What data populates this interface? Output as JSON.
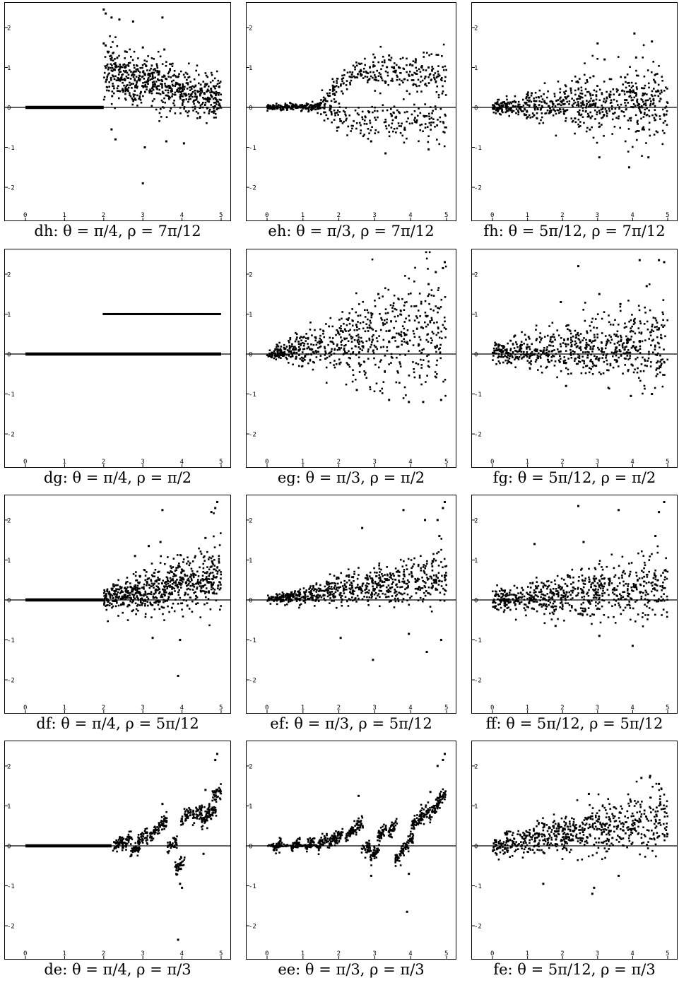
{
  "page": {
    "background": "#ffffff",
    "mark_color": "#000000"
  },
  "chart_data": [
    {
      "id": "dh",
      "caption": "dh:  θ = π/4,  ρ = 7π/12",
      "type": "scatter",
      "xlim": [
        0,
        5
      ],
      "ylim": [
        -2.6,
        2.6
      ],
      "xticks": [
        "0",
        "1",
        "2",
        "3",
        "4",
        "5"
      ],
      "yticks": [
        "-2",
        "-1",
        "0",
        "1",
        "2"
      ],
      "grid": false,
      "pattern": {
        "kind": "zero-then-scatter",
        "x_switch": 2.0,
        "mean": [
          0.9,
          0.2
        ],
        "spread": [
          0.35,
          0.25
        ],
        "outliers": [
          [
            2.0,
            2.45
          ],
          [
            2.05,
            2.35
          ],
          [
            2.2,
            2.25
          ],
          [
            2.4,
            2.2
          ],
          [
            2.75,
            2.15
          ],
          [
            3.5,
            2.25
          ],
          [
            3.0,
            -1.9
          ],
          [
            2.0,
            1.6
          ],
          [
            3.0,
            1.5
          ],
          [
            3.55,
            1.45
          ],
          [
            2.55,
            1.4
          ],
          [
            2.05,
            1.55
          ],
          [
            3.05,
            -1.0
          ],
          [
            2.3,
            -0.8
          ],
          [
            3.6,
            -0.85
          ],
          [
            4.05,
            -0.9
          ],
          [
            2.2,
            -0.55
          ]
        ]
      }
    },
    {
      "id": "eh",
      "caption": "eh:  θ = π/3,  ρ = 7π/12",
      "type": "scatter",
      "xlim": [
        0,
        5
      ],
      "ylim": [
        -2.6,
        2.6
      ],
      "xticks": [
        "0",
        "1",
        "2",
        "3",
        "4",
        "5"
      ],
      "yticks": [
        "-2",
        "-1",
        "0",
        "1",
        "2"
      ],
      "grid": false,
      "pattern": {
        "kind": "two-band",
        "upper": 0.75,
        "lower": -0.35,
        "spread_end": 0.3,
        "outliers": [
          [
            3.3,
            -1.15
          ],
          [
            4.5,
            -1.05
          ],
          [
            2.9,
            -0.85
          ],
          [
            3.4,
            1.3
          ],
          [
            3.0,
            1.25
          ],
          [
            4.05,
            1.05
          ],
          [
            4.5,
            1.0
          ]
        ]
      }
    },
    {
      "id": "fh",
      "caption": "fh:  θ = 5π/12,  ρ = 7π/12",
      "type": "scatter",
      "xlim": [
        0,
        5
      ],
      "ylim": [
        -2.6,
        2.6
      ],
      "xticks": [
        "0",
        "1",
        "2",
        "3",
        "4",
        "5"
      ],
      "yticks": [
        "-2",
        "-1",
        "0",
        "1",
        "2"
      ],
      "grid": false,
      "pattern": {
        "kind": "fan",
        "slope": 0.04,
        "spread_start": 0.06,
        "spread_end": 0.55,
        "outliers": [
          [
            4.05,
            1.85
          ],
          [
            3.0,
            1.6
          ],
          [
            4.55,
            1.65
          ],
          [
            3.9,
            -1.5
          ],
          [
            3.05,
            -1.25
          ],
          [
            4.45,
            -1.25
          ],
          [
            3.2,
            1.2
          ],
          [
            4.1,
            1.25
          ]
        ]
      }
    },
    {
      "id": "dg",
      "caption": "dg:  θ = π/4,  ρ = π/2",
      "type": "scatter",
      "xlim": [
        0,
        5
      ],
      "ylim": [
        -2.6,
        2.6
      ],
      "xticks": [
        "0",
        "1",
        "2",
        "3",
        "4",
        "5"
      ],
      "yticks": [
        "-2",
        "-1",
        "0",
        "1",
        "2"
      ],
      "grid": false,
      "pattern": {
        "kind": "two-lines",
        "x_switch": 2.0,
        "level": 1.0,
        "outliers": []
      }
    },
    {
      "id": "eg",
      "caption": "eg:  θ = π/3,  ρ = π/2",
      "type": "scatter",
      "xlim": [
        0,
        5
      ],
      "ylim": [
        -2.6,
        2.6
      ],
      "xticks": [
        "0",
        "1",
        "2",
        "3",
        "4",
        "5"
      ],
      "yticks": [
        "-2",
        "-1",
        "0",
        "1",
        "2"
      ],
      "grid": false,
      "pattern": {
        "kind": "fan",
        "slope": 0.12,
        "spread_start": 0.04,
        "spread_end": 0.85,
        "outliers": [
          [
            4.95,
            2.3
          ],
          [
            4.9,
            2.15
          ],
          [
            4.7,
            2.05
          ],
          [
            3.1,
            1.5
          ],
          [
            4.5,
            1.75
          ],
          [
            4.35,
            -1.2
          ],
          [
            3.4,
            -1.15
          ],
          [
            3.95,
            -1.2
          ],
          [
            4.85,
            -1.15
          ],
          [
            2.5,
            -0.9
          ]
        ]
      }
    },
    {
      "id": "fg",
      "caption": "fg:  θ = 5π/12,  ρ = π/2",
      "type": "scatter",
      "xlim": [
        0,
        5
      ],
      "ylim": [
        -2.6,
        2.6
      ],
      "xticks": [
        "0",
        "1",
        "2",
        "3",
        "4",
        "5"
      ],
      "yticks": [
        "-2",
        "-1",
        "0",
        "1",
        "2"
      ],
      "grid": false,
      "pattern": {
        "kind": "fan",
        "slope": 0.06,
        "spread_start": 0.12,
        "spread_end": 0.55,
        "outliers": [
          [
            4.2,
            2.35
          ],
          [
            4.75,
            2.35
          ],
          [
            4.9,
            2.3
          ],
          [
            2.45,
            2.2
          ],
          [
            3.05,
            1.5
          ],
          [
            4.4,
            1.7
          ],
          [
            1.95,
            1.3
          ],
          [
            3.65,
            1.25
          ],
          [
            3.95,
            -1.05
          ],
          [
            4.55,
            -1.0
          ],
          [
            2.1,
            -0.8
          ]
        ]
      }
    },
    {
      "id": "df",
      "caption": "df:  θ = π/4,  ρ = 5π/12",
      "type": "scatter",
      "xlim": [
        0,
        5
      ],
      "ylim": [
        -2.6,
        2.6
      ],
      "xticks": [
        "0",
        "1",
        "2",
        "3",
        "4",
        "5"
      ],
      "yticks": [
        "-2",
        "-1",
        "0",
        "1",
        "2"
      ],
      "grid": false,
      "pattern": {
        "kind": "zero-then-fan",
        "x_switch": 2.0,
        "slope": 0.2,
        "spread_start": 0.15,
        "spread_end": 0.45,
        "outliers": [
          [
            4.9,
            2.45
          ],
          [
            4.85,
            2.3
          ],
          [
            4.75,
            2.2
          ],
          [
            3.15,
            1.35
          ],
          [
            3.5,
            2.25
          ],
          [
            3.45,
            1.45
          ],
          [
            4.6,
            1.55
          ],
          [
            3.9,
            -1.9
          ],
          [
            3.95,
            -1.0
          ],
          [
            3.25,
            -0.95
          ],
          [
            2.8,
            1.1
          ]
        ]
      }
    },
    {
      "id": "ef",
      "caption": "ef:  θ = π/3,  ρ = 5π/12",
      "type": "scatter",
      "xlim": [
        0,
        5
      ],
      "ylim": [
        -2.6,
        2.6
      ],
      "xticks": [
        "0",
        "1",
        "2",
        "3",
        "4",
        "5"
      ],
      "yticks": [
        "-2",
        "-1",
        "0",
        "1",
        "2"
      ],
      "grid": false,
      "pattern": {
        "kind": "fan",
        "slope": 0.12,
        "spread_start": 0.04,
        "spread_end": 0.35,
        "outliers": [
          [
            4.95,
            2.45
          ],
          [
            4.9,
            2.3
          ],
          [
            4.75,
            2.0
          ],
          [
            4.8,
            1.6
          ],
          [
            3.8,
            2.25
          ],
          [
            2.65,
            1.8
          ],
          [
            4.4,
            2.0
          ],
          [
            2.95,
            -1.5
          ],
          [
            4.45,
            -1.3
          ],
          [
            4.85,
            -1.0
          ],
          [
            2.05,
            -0.95
          ],
          [
            3.95,
            -0.85
          ]
        ]
      }
    },
    {
      "id": "ff",
      "caption": "ff:  θ = 5π/12,  ρ = 5π/12",
      "type": "scatter",
      "xlim": [
        0,
        5
      ],
      "ylim": [
        -2.6,
        2.6
      ],
      "xticks": [
        "0",
        "1",
        "2",
        "3",
        "4",
        "5"
      ],
      "yticks": [
        "-2",
        "-1",
        "0",
        "1",
        "2"
      ],
      "grid": false,
      "pattern": {
        "kind": "fan",
        "slope": 0.06,
        "spread_start": 0.12,
        "spread_end": 0.45,
        "outliers": [
          [
            4.9,
            2.45
          ],
          [
            4.75,
            2.2
          ],
          [
            2.45,
            2.35
          ],
          [
            3.6,
            2.25
          ],
          [
            1.2,
            1.4
          ],
          [
            2.6,
            1.45
          ],
          [
            4.65,
            1.6
          ],
          [
            4.0,
            -1.15
          ],
          [
            3.05,
            -0.9
          ],
          [
            1.8,
            -0.65
          ]
        ]
      }
    },
    {
      "id": "de",
      "caption": "de:  θ = π/4,  ρ = π/3",
      "type": "scatter",
      "xlim": [
        0,
        5
      ],
      "ylim": [
        -2.6,
        2.6
      ],
      "xticks": [
        "0",
        "1",
        "2",
        "3",
        "4",
        "5"
      ],
      "yticks": [
        "-2",
        "-1",
        "0",
        "1",
        "2"
      ],
      "grid": false,
      "pattern": {
        "kind": "zero-then-clusters",
        "x_switch": 2.2,
        "clusters": [
          [
            2.35,
            0.05
          ],
          [
            2.6,
            0.1
          ],
          [
            2.8,
            -0.1
          ],
          [
            3.0,
            0.2
          ],
          [
            3.3,
            0.35
          ],
          [
            3.5,
            0.55
          ],
          [
            3.75,
            0.05
          ],
          [
            3.95,
            -0.45
          ],
          [
            4.1,
            0.75
          ],
          [
            4.4,
            0.8
          ],
          [
            4.6,
            0.7
          ],
          [
            4.75,
            0.85
          ],
          [
            4.9,
            1.3
          ]
        ],
        "outliers": [
          [
            4.9,
            2.3
          ],
          [
            4.85,
            2.15
          ],
          [
            4.0,
            -1.05
          ],
          [
            3.95,
            -0.95
          ],
          [
            3.9,
            -2.35
          ],
          [
            3.5,
            1.05
          ],
          [
            4.6,
            1.4
          ],
          [
            4.55,
            -0.2
          ]
        ]
      }
    },
    {
      "id": "ee",
      "caption": "ee:  θ = π/3,  ρ = π/3",
      "type": "scatter",
      "xlim": [
        0,
        5
      ],
      "ylim": [
        -2.6,
        2.6
      ],
      "xticks": [
        "0",
        "1",
        "2",
        "3",
        "4",
        "5"
      ],
      "yticks": [
        "-2",
        "-1",
        "0",
        "1",
        "2"
      ],
      "grid": false,
      "pattern": {
        "kind": "clusters",
        "x_start": 0.0,
        "clusters": [
          [
            0.3,
            0.0
          ],
          [
            0.8,
            0.03
          ],
          [
            1.2,
            0.05
          ],
          [
            1.55,
            0.1
          ],
          [
            1.8,
            0.15
          ],
          [
            2.0,
            0.2
          ],
          [
            2.3,
            0.3
          ],
          [
            2.55,
            0.5
          ],
          [
            2.75,
            -0.1
          ],
          [
            3.0,
            -0.2
          ],
          [
            3.2,
            0.3
          ],
          [
            3.5,
            0.45
          ],
          [
            3.7,
            -0.2
          ],
          [
            3.95,
            0.1
          ],
          [
            4.15,
            0.6
          ],
          [
            4.4,
            0.8
          ],
          [
            4.65,
            0.9
          ],
          [
            4.85,
            1.2
          ]
        ],
        "outliers": [
          [
            4.95,
            2.3
          ],
          [
            4.9,
            2.15
          ],
          [
            4.75,
            2.0
          ],
          [
            2.55,
            1.25
          ],
          [
            3.9,
            -1.65
          ],
          [
            2.9,
            -0.75
          ],
          [
            4.55,
            1.35
          ],
          [
            3.95,
            -0.7
          ]
        ]
      }
    },
    {
      "id": "fe",
      "caption": "fe:  θ = 5π/12,  ρ = π/3",
      "type": "scatter",
      "xlim": [
        0,
        5
      ],
      "ylim": [
        -2.6,
        2.6
      ],
      "xticks": [
        "0",
        "1",
        "2",
        "3",
        "4",
        "5"
      ],
      "yticks": [
        "-2",
        "-1",
        "0",
        "1",
        "2"
      ],
      "grid": false,
      "pattern": {
        "kind": "fan",
        "slope": 0.15,
        "spread_start": 0.12,
        "spread_end": 0.45,
        "outliers": [
          [
            4.25,
            1.7
          ],
          [
            4.5,
            1.75
          ],
          [
            4.75,
            1.55
          ],
          [
            2.75,
            1.3
          ],
          [
            2.85,
            -1.2
          ],
          [
            2.9,
            -1.05
          ],
          [
            1.45,
            -0.95
          ],
          [
            3.6,
            -0.75
          ]
        ]
      }
    }
  ]
}
